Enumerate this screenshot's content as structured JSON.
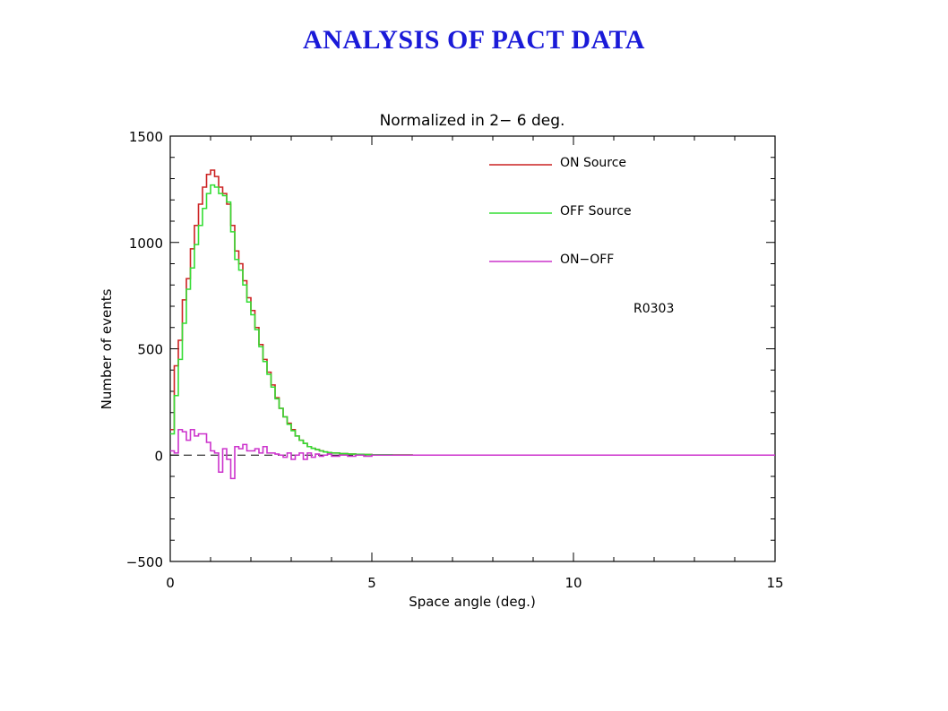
{
  "slide": {
    "title": "ANALYSIS OF PACT DATA"
  },
  "chart_data": {
    "type": "line",
    "title": "Normalized in  2− 6 deg.",
    "xlabel": "Space angle (deg.)",
    "ylabel": "Number of events",
    "xlim": [
      0,
      15
    ],
    "ylim": [
      -500,
      1500
    ],
    "xticks": [
      0,
      5,
      10,
      15
    ],
    "yticks": [
      -500,
      0,
      500,
      1000,
      1500
    ],
    "annotation": "R0303",
    "legend_position": "top-right",
    "x": [
      0.0,
      0.1,
      0.2,
      0.3,
      0.4,
      0.5,
      0.6,
      0.7,
      0.8,
      0.9,
      1.0,
      1.1,
      1.2,
      1.3,
      1.4,
      1.5,
      1.6,
      1.7,
      1.8,
      1.9,
      2.0,
      2.1,
      2.2,
      2.3,
      2.4,
      2.5,
      2.6,
      2.7,
      2.8,
      2.9,
      3.0,
      3.1,
      3.2,
      3.3,
      3.4,
      3.5,
      3.6,
      3.7,
      3.8,
      3.9,
      4.0,
      4.2,
      4.4,
      4.6,
      4.8,
      5.0,
      5.5,
      6.0,
      7.0,
      8.0,
      9.0,
      10.0,
      11.0,
      12.0,
      13.0,
      14.0,
      15.0
    ],
    "series": [
      {
        "name": "ON Source",
        "color": "#cc2222",
        "values": [
          120,
          420,
          540,
          730,
          830,
          970,
          1080,
          1180,
          1260,
          1320,
          1340,
          1310,
          1260,
          1230,
          1180,
          1080,
          960,
          900,
          820,
          740,
          680,
          600,
          520,
          450,
          390,
          330,
          270,
          220,
          180,
          150,
          120,
          90,
          70,
          55,
          40,
          32,
          26,
          20,
          15,
          12,
          10,
          7,
          5,
          4,
          3,
          2,
          1,
          0,
          0,
          0,
          0,
          0,
          0,
          0,
          0,
          0,
          0
        ]
      },
      {
        "name": "OFF Source",
        "color": "#33dd33",
        "values": [
          100,
          280,
          450,
          620,
          780,
          880,
          990,
          1080,
          1160,
          1230,
          1270,
          1260,
          1230,
          1220,
          1190,
          1050,
          920,
          870,
          800,
          720,
          660,
          590,
          510,
          440,
          380,
          320,
          265,
          220,
          180,
          145,
          115,
          90,
          70,
          55,
          40,
          32,
          26,
          20,
          15,
          12,
          10,
          7,
          5,
          4,
          3,
          2,
          1,
          0,
          0,
          0,
          0,
          0,
          0,
          0,
          0,
          0,
          0
        ]
      },
      {
        "name": "ON−OFF",
        "color": "#cc33cc",
        "values": [
          20,
          10,
          120,
          110,
          70,
          120,
          90,
          100,
          100,
          60,
          20,
          10,
          -80,
          30,
          -20,
          -110,
          40,
          30,
          50,
          20,
          20,
          30,
          10,
          40,
          10,
          10,
          5,
          0,
          -10,
          10,
          -20,
          0,
          10,
          -20,
          10,
          -10,
          5,
          -5,
          0,
          5,
          -5,
          0,
          -5,
          0,
          -5,
          0,
          0,
          0,
          0,
          0,
          0,
          0,
          0,
          0,
          0,
          0,
          0
        ]
      }
    ]
  }
}
